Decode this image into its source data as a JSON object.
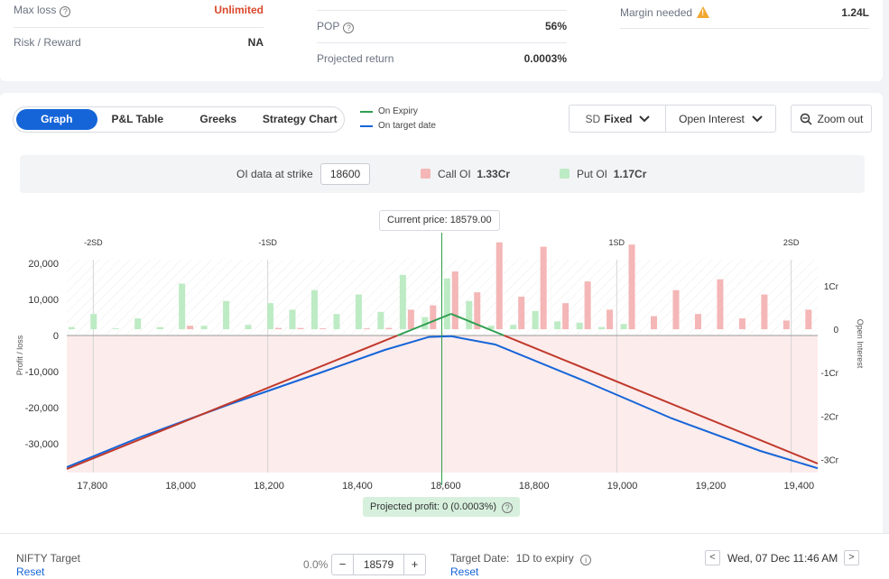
{
  "summary": {
    "max_loss_label": "Max loss",
    "max_loss_value": "Unlimited",
    "risk_reward_label": "Risk / Reward",
    "risk_reward_value": "NA",
    "pop_label": "POP",
    "pop_value": "56%",
    "projected_return_label": "Projected return",
    "projected_return_value": "0.0003%",
    "margin_label": "Margin needed",
    "margin_value": "1.24L"
  },
  "tabs": [
    "Graph",
    "P&L Table",
    "Greeks",
    "Strategy Chart"
  ],
  "active_tab": 0,
  "legend": {
    "expiry": "On Expiry",
    "target": "On target date"
  },
  "controls": {
    "sd_label": "SD",
    "sd_value": "Fixed",
    "oi_label": "Open Interest",
    "zoom_label": "Zoom out"
  },
  "oi_info": {
    "strike_label": "OI data at strike",
    "strike_value": "18600",
    "call_label": "Call OI",
    "call_value": "1.33Cr",
    "put_label": "Put OI",
    "put_value": "1.17Cr"
  },
  "current_price_label": "Current price: 18579.00",
  "projected_profit_label": "Projected profit: 0 (0.0003%)",
  "colors": {
    "accent": "#1565d8",
    "expiry_line": "#c0392b",
    "target_line": "#1565d8",
    "profit_line": "#2e9e4f",
    "call_oi": "#f4b6b6",
    "put_oi": "#bdebc4",
    "loss_fill": "#fdecec",
    "warning": "#f0a830"
  },
  "chart_data": {
    "type": "line",
    "x_ticks": [
      "17,800",
      "18,000",
      "18,200",
      "18,400",
      "18,600",
      "18,800",
      "19,000",
      "19,200",
      "19,400"
    ],
    "y_ticks": [
      "20,000",
      "10,000",
      "0",
      "-10,000",
      "-20,000",
      "-30,000"
    ],
    "oi_ticks": [
      "1Cr",
      "0",
      "-1Cr",
      "-2Cr",
      "-3Cr"
    ],
    "sd_labels": [
      "-2SD",
      "-1SD",
      "1SD",
      "2SD"
    ],
    "sd_values": [
      17790,
      18185,
      18975,
      19370
    ],
    "ylabel": "Profit / loss",
    "y2label": "Open Interest",
    "xlim": [
      17730,
      19430
    ],
    "ylim": [
      -38000,
      21000
    ],
    "oi_ylim": [
      -3.3,
      1.6
    ],
    "current_price": 18579,
    "series": [
      {
        "name": "On Expiry",
        "x": [
          17730,
          18600,
          19430
        ],
        "y": [
          -37000,
          6000,
          -35500
        ]
      },
      {
        "name": "On target date",
        "x": [
          17730,
          17900,
          18100,
          18300,
          18450,
          18550,
          18600,
          18700,
          18900,
          19100,
          19300,
          19430
        ],
        "y": [
          -36500,
          -28000,
          -19000,
          -10500,
          -4000,
          -400,
          -200,
          -2500,
          -12500,
          -23000,
          -32000,
          -36800
        ]
      }
    ],
    "oi_strikes": [
      17750,
      17800,
      17850,
      17900,
      17950,
      18000,
      18050,
      18100,
      18150,
      18200,
      18250,
      18300,
      18350,
      18400,
      18450,
      18500,
      18550,
      18600,
      18650,
      18700,
      18750,
      18800,
      18850,
      18900,
      18950,
      19000,
      19050,
      19100,
      19150,
      19200,
      19250,
      19300,
      19350,
      19400
    ],
    "call_oi": [
      0,
      0,
      0,
      0,
      0,
      0.08,
      0,
      0,
      0,
      0.03,
      0.03,
      0.02,
      0,
      0.02,
      0.03,
      0.45,
      0.55,
      1.33,
      0.85,
      2.0,
      0.75,
      1.9,
      0.6,
      1.1,
      0.45,
      1.95,
      0.3,
      0.9,
      0.35,
      1.15,
      0.25,
      0.8,
      0.2,
      0.45
    ],
    "put_oi": [
      0.05,
      0.35,
      0.02,
      0.25,
      0.05,
      1.05,
      0.08,
      0.65,
      0.1,
      0.6,
      0.45,
      0.9,
      0.35,
      0.8,
      0.4,
      1.25,
      0.28,
      1.17,
      0.65,
      0.08,
      0.1,
      0.42,
      0.18,
      0.15,
      0.05,
      0.12,
      0,
      0,
      0,
      0,
      0,
      0,
      0,
      0
    ]
  },
  "bottom": {
    "target_label": "NIFTY Target",
    "reset": "Reset",
    "pct": "0.0%",
    "target_value": "18579",
    "minus": "−",
    "plus": "+",
    "target_date_label": "Target Date:",
    "target_date_value": "1D to expiry",
    "date_display": "Wed, 07 Dec 11:46 AM",
    "prev": "<",
    "next": ">"
  }
}
